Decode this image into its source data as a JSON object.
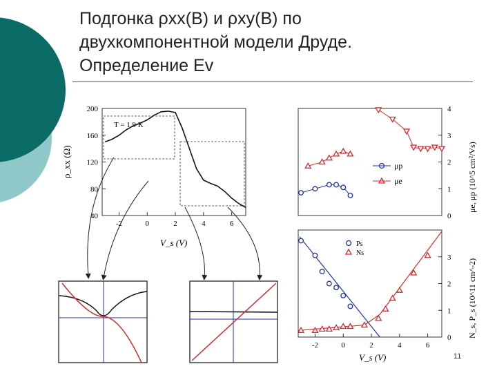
{
  "slide": {
    "title_line1": "Подгонка ρxx(B) и ρxy(B) по",
    "title_line2": "двухкомпонентной модели Друде.",
    "title_line3": "Определение Ev",
    "page_number": "11"
  },
  "colors": {
    "teal_dark": "#0b6b66",
    "teal_light": "#8fc8c8",
    "blue": "#1f2fa8",
    "red": "#d42a2a"
  },
  "chart_data": [
    {
      "type": "line",
      "xlabel": "V_s (V)",
      "ylabel": "ρ_xx (Ω)",
      "xlim": [
        -3.2,
        7
      ],
      "ylim": [
        40,
        200
      ],
      "xticks": [
        "-2",
        "0",
        "2",
        "4",
        "6"
      ],
      "yticks": [
        "40",
        "80",
        "120",
        "160",
        "200"
      ],
      "annotation": "T = 1.9 K",
      "x": [
        -3.0,
        -2.5,
        -2.0,
        -1.5,
        -1.0,
        -0.5,
        0.0,
        0.5,
        1.0,
        1.5,
        2.0,
        2.5,
        3.0,
        3.5,
        4.0,
        4.5,
        5.0,
        5.5,
        6.0,
        6.5,
        7.0
      ],
      "values": [
        150,
        154,
        160,
        168,
        174,
        178,
        183,
        190,
        195,
        196,
        194,
        170,
        140,
        110,
        93,
        88,
        84,
        76,
        66,
        58,
        52
      ]
    },
    {
      "type": "scatter",
      "xlim": [
        -3.2,
        7
      ],
      "ylim": [
        0,
        4
      ],
      "ylabel": "μe, μp (10^5 cm²/Vs)",
      "yticks": [
        "0",
        "1",
        "2",
        "3",
        "4"
      ],
      "legend": [
        "μp",
        "μe"
      ],
      "series": [
        {
          "name": "μp",
          "x": [
            -3.0,
            -2.0,
            -1.0,
            -0.5,
            0.0,
            0.5
          ],
          "values": [
            0.85,
            1.0,
            1.15,
            1.15,
            1.05,
            0.75
          ]
        },
        {
          "name": "μe",
          "x": [
            -2.5,
            -1.5,
            -1.0,
            -0.5,
            0.0,
            0.5
          ],
          "values": [
            1.85,
            2.0,
            2.15,
            2.3,
            2.4,
            2.3
          ]
        },
        {
          "name": "",
          "x": [
            2.5,
            3.5,
            4.5,
            5.0,
            5.5,
            6.0,
            6.5,
            7.0
          ],
          "values": [
            3.95,
            3.6,
            3.15,
            2.55,
            2.5,
            2.5,
            2.55,
            2.5
          ]
        }
      ]
    },
    {
      "type": "scatter",
      "xlabel": "V_s (V)",
      "ylabel": "N_s, P_s (10^11 cm^-2)",
      "xlim": [
        -3.2,
        7
      ],
      "ylim": [
        0,
        4
      ],
      "xticks": [
        "-2",
        "0",
        "2",
        "4",
        "6"
      ],
      "yticks": [
        "0",
        "1",
        "2",
        "3"
      ],
      "legend": [
        "Ps",
        "Ns"
      ],
      "series": [
        {
          "name": "Ps",
          "x": [
            -3.0,
            -2.0,
            -1.5,
            -1.0,
            -0.5,
            0.0,
            0.5
          ],
          "values": [
            3.6,
            3.05,
            2.45,
            2.0,
            1.85,
            1.55,
            1.15
          ]
        },
        {
          "name": "Ns",
          "x": [
            -3.0,
            -2.0,
            -1.5,
            -1.0,
            -0.5,
            0.0,
            0.5,
            1.5,
            2.5,
            3.0,
            3.5,
            4.0,
            5.0,
            6.0
          ],
          "values": [
            0.25,
            0.25,
            0.3,
            0.3,
            0.35,
            0.4,
            0.4,
            0.45,
            0.7,
            1.05,
            1.45,
            1.75,
            2.4,
            3.05
          ]
        }
      ]
    }
  ]
}
